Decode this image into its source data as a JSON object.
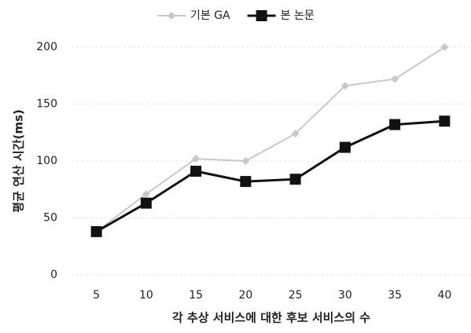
{
  "chart_data": {
    "type": "line",
    "x_label": "각 추상 서비스에 대한 후보 서비스의 수",
    "y_label": "평균 연산 시간(ms)",
    "categories": [
      5,
      10,
      15,
      20,
      25,
      30,
      35,
      40
    ],
    "series": [
      {
        "name": "기본 GA",
        "color": "#c8c8c8",
        "marker": "diamond",
        "values": [
          38,
          71,
          102,
          100,
          124,
          166,
          172,
          200
        ]
      },
      {
        "name": "본 논문",
        "color": "#111111",
        "marker": "square",
        "values": [
          38,
          63,
          91,
          82,
          84,
          112,
          132,
          135
        ]
      }
    ],
    "ylim": [
      0,
      200
    ],
    "yticks": [
      0,
      50,
      100,
      150,
      200
    ],
    "grid": true,
    "legend": "top"
  }
}
